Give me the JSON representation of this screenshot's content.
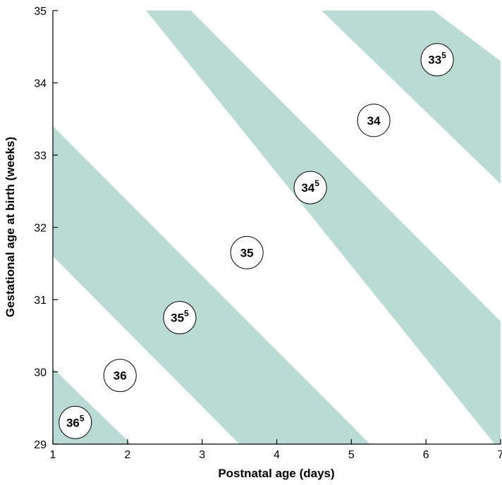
{
  "chart_data": {
    "type": "area",
    "xlabel": "Postnatal age (days)",
    "ylabel": "Gestational age at birth (weeks)",
    "xlim": [
      1,
      7
    ],
    "ylim": [
      29,
      35
    ],
    "xticks": [
      "1",
      "2",
      "3",
      "4",
      "5",
      "6",
      "7"
    ],
    "yticks": [
      "29",
      "30",
      "31",
      "32",
      "33",
      "34",
      "35"
    ],
    "band_color": "#b9dbd4",
    "bands": [
      {
        "polygon": [
          [
            1,
            30.05
          ],
          [
            2.05,
            29
          ],
          [
            1,
            29
          ]
        ]
      },
      {
        "polygon": [
          [
            1,
            33.4
          ],
          [
            5.25,
            29
          ],
          [
            3.5,
            29
          ],
          [
            1,
            31.6
          ]
        ]
      },
      {
        "polygon": [
          [
            2.25,
            35
          ],
          [
            2.85,
            35
          ],
          [
            7,
            30.7
          ],
          [
            7,
            28.9
          ]
        ]
      },
      {
        "polygon": [
          [
            4.6,
            35
          ],
          [
            6.1,
            35
          ],
          [
            7,
            34.3
          ],
          [
            7,
            32.6
          ]
        ]
      }
    ],
    "zones": [
      {
        "base": "36",
        "sup": "5",
        "x": 1.3,
        "y": 29.3
      },
      {
        "base": "36",
        "sup": "",
        "x": 1.9,
        "y": 29.95
      },
      {
        "base": "35",
        "sup": "5",
        "x": 2.7,
        "y": 30.75
      },
      {
        "base": "35",
        "sup": "",
        "x": 3.6,
        "y": 31.65
      },
      {
        "base": "34",
        "sup": "5",
        "x": 4.45,
        "y": 32.55
      },
      {
        "base": "34",
        "sup": "",
        "x": 5.3,
        "y": 33.48
      },
      {
        "base": "33",
        "sup": "5",
        "x": 6.15,
        "y": 34.32
      }
    ]
  }
}
